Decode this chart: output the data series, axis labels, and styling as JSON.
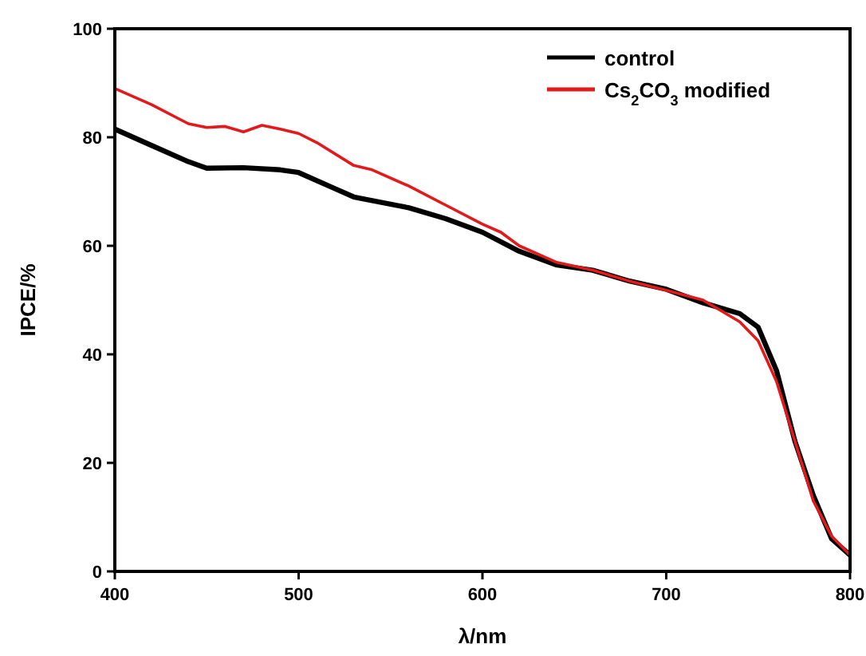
{
  "chart_data": {
    "type": "line",
    "xlabel": "λ/nm",
    "ylabel": "IPCE/%",
    "xlim": [
      400,
      800
    ],
    "ylim": [
      0,
      100
    ],
    "xticks": [
      400,
      500,
      600,
      700,
      800
    ],
    "yticks": [
      0,
      20,
      40,
      60,
      80,
      100
    ],
    "grid": false,
    "legend": "top right",
    "marker": "none",
    "line_style": "solid",
    "series": [
      {
        "name": "control",
        "color": "#000000",
        "x": [
          400,
          420,
          440,
          450,
          470,
          490,
          500,
          520,
          530,
          560,
          580,
          600,
          620,
          640,
          660,
          680,
          700,
          720,
          740,
          750,
          760,
          770,
          780,
          790,
          800
        ],
        "values": [
          81.5,
          78.5,
          75.5,
          74.3,
          74.4,
          74,
          73.5,
          70.5,
          69,
          67,
          65,
          62.5,
          59,
          56.5,
          55.5,
          53.5,
          52,
          49.5,
          47.5,
          45,
          37,
          24,
          14,
          6,
          3
        ]
      },
      {
        "name": "Cs$_{2}$CO$_{3}$ modified",
        "color": "#e31a1c",
        "x": [
          400,
          420,
          440,
          450,
          460,
          470,
          480,
          490,
          500,
          510,
          530,
          540,
          560,
          580,
          600,
          610,
          620,
          640,
          660,
          680,
          700,
          720,
          740,
          750,
          760,
          770,
          780,
          790,
          800
        ],
        "values": [
          89,
          86,
          82.5,
          81.8,
          82,
          81,
          82.2,
          81.5,
          80.7,
          79,
          74.8,
          74,
          71,
          67.5,
          64,
          62.5,
          60,
          57,
          55.5,
          53.5,
          51.8,
          50,
          46,
          42.5,
          35,
          24,
          13,
          6.5,
          3
        ]
      }
    ]
  }
}
